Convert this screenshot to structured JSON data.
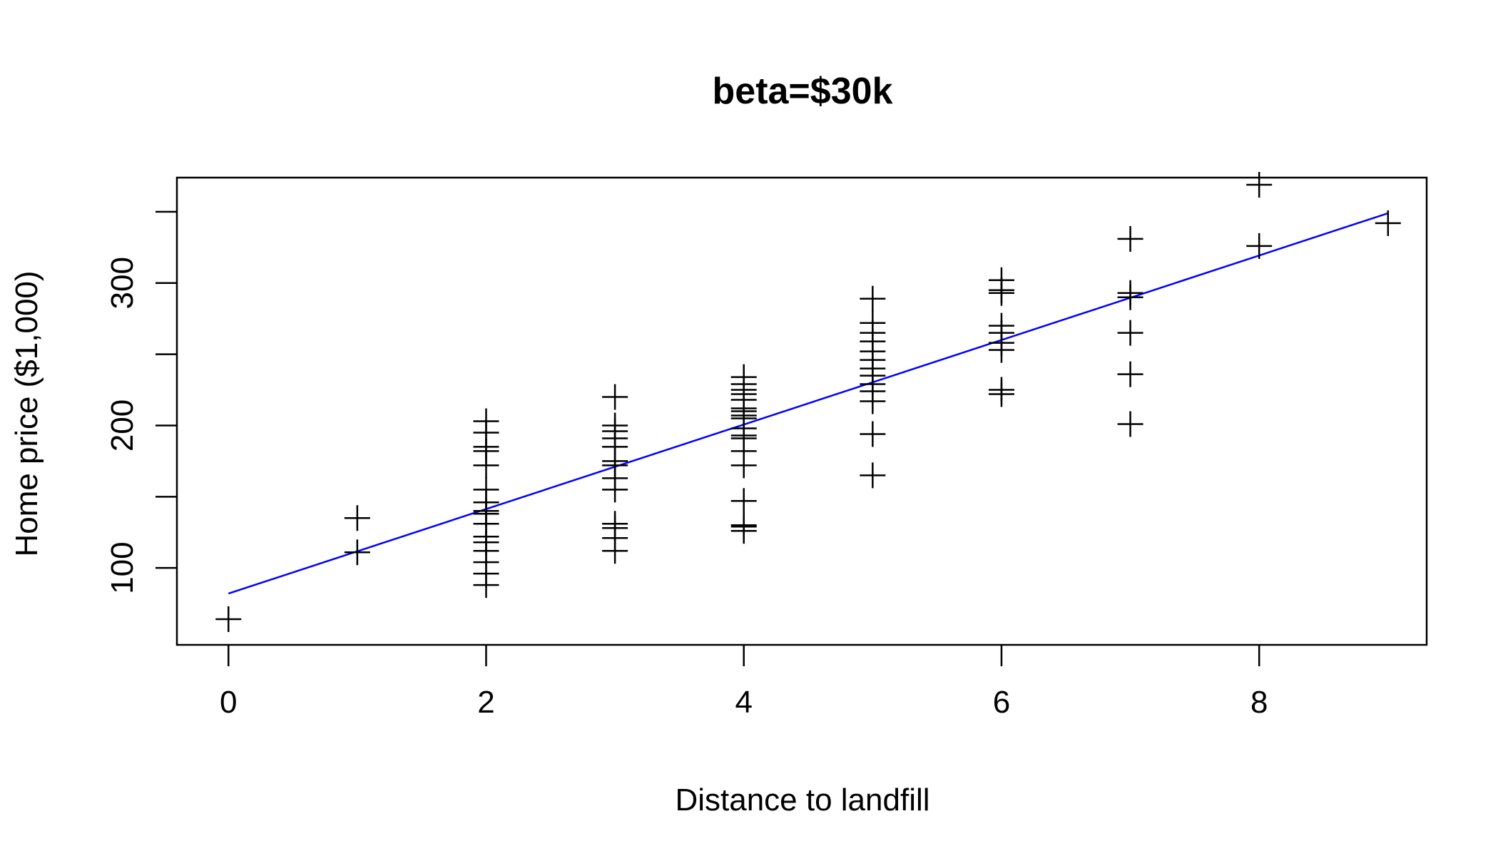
{
  "chart_data": {
    "type": "scatter",
    "title": "beta=$30k",
    "xlabel": "Distance to landfill",
    "ylabel": "Home price ($1,000)",
    "xlim": [
      -0.4,
      9.3
    ],
    "ylim": [
      46,
      374
    ],
    "xticks": [
      0,
      2,
      4,
      6,
      8
    ],
    "yticks": [
      100,
      200,
      300
    ],
    "yticks_minor": [
      100,
      150,
      200,
      250,
      300,
      350
    ],
    "grid": false,
    "legend": "none",
    "marker": "plus",
    "colors": {
      "points": "#000000",
      "fit_line": "#0000ff",
      "frame": "#000000"
    },
    "points": [
      {
        "x": 0,
        "y": 64
      },
      {
        "x": 1,
        "y": 111
      },
      {
        "x": 1,
        "y": 135
      },
      {
        "x": 2,
        "y": 88
      },
      {
        "x": 2,
        "y": 96
      },
      {
        "x": 2,
        "y": 104
      },
      {
        "x": 2,
        "y": 112
      },
      {
        "x": 2,
        "y": 118
      },
      {
        "x": 2,
        "y": 122
      },
      {
        "x": 2,
        "y": 131
      },
      {
        "x": 2,
        "y": 138
      },
      {
        "x": 2,
        "y": 140
      },
      {
        "x": 2,
        "y": 146
      },
      {
        "x": 2,
        "y": 155
      },
      {
        "x": 2,
        "y": 172
      },
      {
        "x": 2,
        "y": 182
      },
      {
        "x": 2,
        "y": 185
      },
      {
        "x": 2,
        "y": 195
      },
      {
        "x": 2,
        "y": 203
      },
      {
        "x": 3,
        "y": 112
      },
      {
        "x": 3,
        "y": 121
      },
      {
        "x": 3,
        "y": 128
      },
      {
        "x": 3,
        "y": 131
      },
      {
        "x": 3,
        "y": 155
      },
      {
        "x": 3,
        "y": 163
      },
      {
        "x": 3,
        "y": 172
      },
      {
        "x": 3,
        "y": 175
      },
      {
        "x": 3,
        "y": 185
      },
      {
        "x": 3,
        "y": 191
      },
      {
        "x": 3,
        "y": 196
      },
      {
        "x": 3,
        "y": 200
      },
      {
        "x": 3,
        "y": 220
      },
      {
        "x": 4,
        "y": 126
      },
      {
        "x": 4,
        "y": 129
      },
      {
        "x": 4,
        "y": 130
      },
      {
        "x": 4,
        "y": 147
      },
      {
        "x": 4,
        "y": 172
      },
      {
        "x": 4,
        "y": 182
      },
      {
        "x": 4,
        "y": 191
      },
      {
        "x": 4,
        "y": 193
      },
      {
        "x": 4,
        "y": 198
      },
      {
        "x": 4,
        "y": 205
      },
      {
        "x": 4,
        "y": 207
      },
      {
        "x": 4,
        "y": 210
      },
      {
        "x": 4,
        "y": 212
      },
      {
        "x": 4,
        "y": 218
      },
      {
        "x": 4,
        "y": 222
      },
      {
        "x": 4,
        "y": 225
      },
      {
        "x": 4,
        "y": 229
      },
      {
        "x": 4,
        "y": 234
      },
      {
        "x": 5,
        "y": 165
      },
      {
        "x": 5,
        "y": 194
      },
      {
        "x": 5,
        "y": 217
      },
      {
        "x": 5,
        "y": 224
      },
      {
        "x": 5,
        "y": 229
      },
      {
        "x": 5,
        "y": 235
      },
      {
        "x": 5,
        "y": 240
      },
      {
        "x": 5,
        "y": 246
      },
      {
        "x": 5,
        "y": 252
      },
      {
        "x": 5,
        "y": 259
      },
      {
        "x": 5,
        "y": 265
      },
      {
        "x": 5,
        "y": 272
      },
      {
        "x": 5,
        "y": 289
      },
      {
        "x": 6,
        "y": 222
      },
      {
        "x": 6,
        "y": 225
      },
      {
        "x": 6,
        "y": 253
      },
      {
        "x": 6,
        "y": 258
      },
      {
        "x": 6,
        "y": 265
      },
      {
        "x": 6,
        "y": 270
      },
      {
        "x": 6,
        "y": 293
      },
      {
        "x": 6,
        "y": 295
      },
      {
        "x": 6,
        "y": 302
      },
      {
        "x": 7,
        "y": 201
      },
      {
        "x": 7,
        "y": 236
      },
      {
        "x": 7,
        "y": 265
      },
      {
        "x": 7,
        "y": 290
      },
      {
        "x": 7,
        "y": 293
      },
      {
        "x": 7,
        "y": 331
      },
      {
        "x": 8,
        "y": 326
      },
      {
        "x": 8,
        "y": 369
      },
      {
        "x": 9,
        "y": 342
      }
    ],
    "fit_line": {
      "x": [
        0,
        9
      ],
      "y": [
        82,
        349
      ]
    }
  }
}
